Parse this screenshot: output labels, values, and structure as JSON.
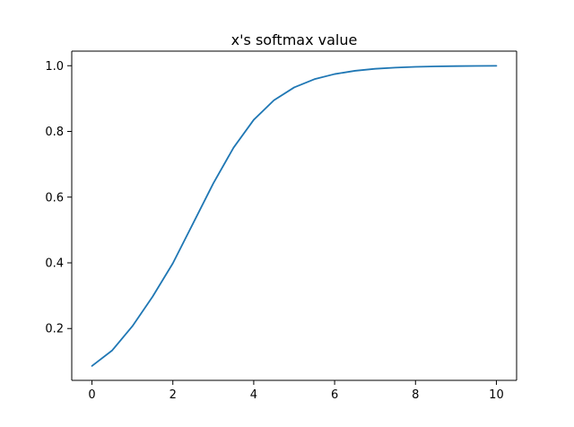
{
  "chart_data": {
    "type": "line",
    "title": "x's softmax value",
    "xlabel": "",
    "ylabel": "",
    "xlim": [
      -0.5,
      10.5
    ],
    "ylim": [
      0.0423,
      1.0444
    ],
    "x_ticks": [
      0,
      2,
      4,
      6,
      8,
      10
    ],
    "x_tick_labels": [
      "0",
      "2",
      "4",
      "6",
      "8",
      "10"
    ],
    "y_ticks": [
      0.2,
      0.4,
      0.6,
      0.8,
      1.0
    ],
    "y_tick_labels": [
      "0.2",
      "0.4",
      "0.6",
      "0.8",
      "1.0"
    ],
    "grid": false,
    "legend": "none",
    "series": [
      {
        "color": "#1f77b4",
        "x": [
          0,
          0.5,
          1,
          1.5,
          2,
          2.5,
          3,
          3.5,
          4,
          4.5,
          5,
          5.5,
          6,
          6.5,
          7,
          7.5,
          8,
          8.5,
          9,
          9.5,
          10
        ],
        "y": [
          0.0861,
          0.1335,
          0.2072,
          0.2973,
          0.3987,
          0.52,
          0.6418,
          0.7504,
          0.8353,
          0.8949,
          0.934,
          0.959,
          0.9746,
          0.9845,
          0.9906,
          0.9943,
          0.9966,
          0.9979,
          0.9988,
          0.9993,
          0.9996
        ]
      }
    ]
  }
}
